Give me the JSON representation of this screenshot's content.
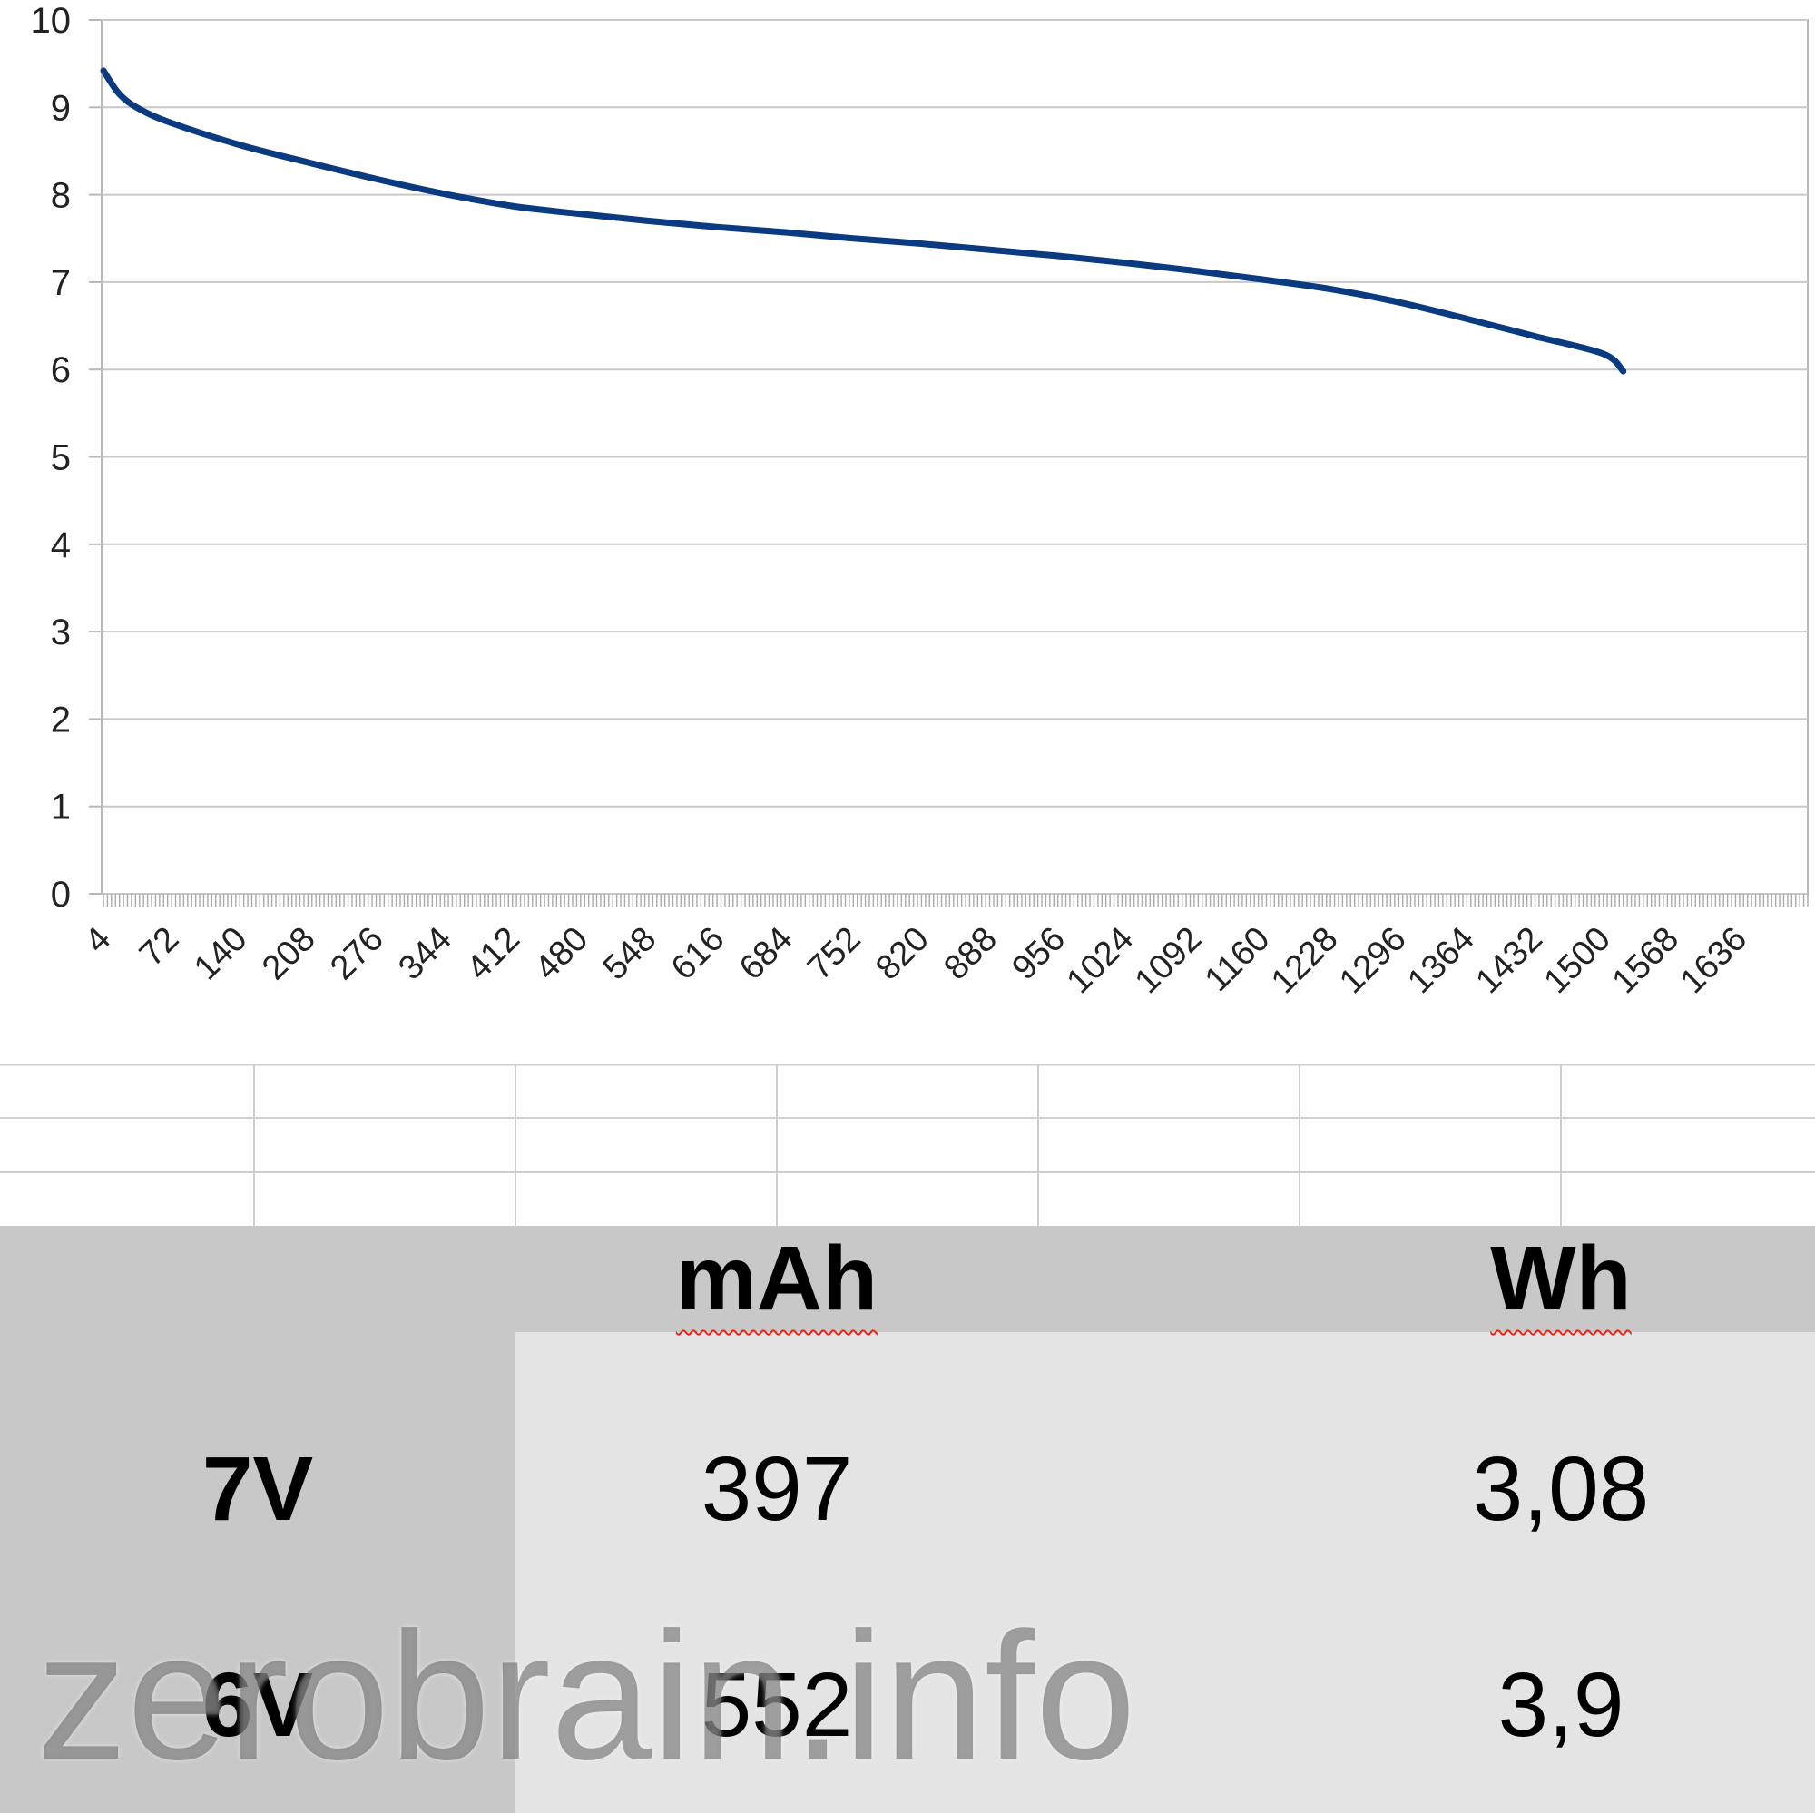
{
  "chart_data": {
    "type": "line",
    "title": "",
    "xlabel": "",
    "ylabel": "",
    "ylim": [
      0,
      10
    ],
    "yticks": [
      "0",
      "1",
      "2",
      "3",
      "4",
      "5",
      "6",
      "7",
      "8",
      "9",
      "10"
    ],
    "x_tick_labels": [
      "4",
      "72",
      "140",
      "208",
      "276",
      "344",
      "412",
      "480",
      "548",
      "616",
      "684",
      "752",
      "820",
      "888",
      "956",
      "1024",
      "1092",
      "1160",
      "1228",
      "1296",
      "1364",
      "1432",
      "1500",
      "1568",
      "1636"
    ],
    "x_start": 4,
    "x_end": 1704,
    "grid": true,
    "legend": "none",
    "series": [
      {
        "color": "#0a3a80",
        "x": [
          4,
          20,
          40,
          72,
          140,
          208,
          276,
          344,
          412,
          480,
          548,
          616,
          684,
          752,
          820,
          888,
          956,
          1024,
          1092,
          1160,
          1228,
          1296,
          1364,
          1432,
          1500,
          1520
        ],
        "y": [
          9.42,
          9.15,
          8.98,
          8.82,
          8.57,
          8.37,
          8.18,
          8.01,
          7.87,
          7.78,
          7.7,
          7.63,
          7.57,
          7.5,
          7.44,
          7.37,
          7.3,
          7.22,
          7.13,
          7.03,
          6.92,
          6.77,
          6.58,
          6.38,
          6.18,
          5.98
        ]
      }
    ]
  },
  "summary_table": {
    "headers": [
      "",
      "mAh",
      "Wh"
    ],
    "rows": [
      {
        "label": "7V",
        "mah": "397",
        "wh": "3,08"
      },
      {
        "label": "6V",
        "mah": "552",
        "wh": "3,9"
      }
    ]
  },
  "watermark": "zerobrain.info",
  "colors": {
    "line": "#0a3a80",
    "gridline": "#c8c8c8",
    "header_bg": "#c8c8c8",
    "body_bg": "#e4e4e4"
  }
}
